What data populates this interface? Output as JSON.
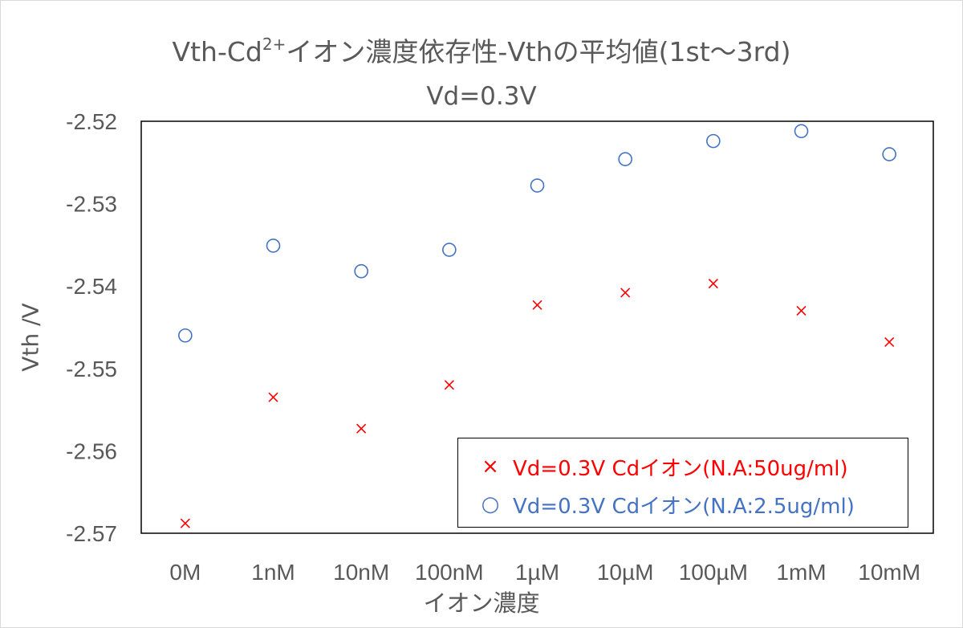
{
  "chart_data": {
    "type": "scatter",
    "title_main": "Vth-Cd",
    "title_sup": "2+",
    "title_rest": "イオン濃度依存性-Vthの平均値(1st～3rd)",
    "subtitle": "Vd=0.3V",
    "xlabel": "イオン濃度",
    "ylabel": "Vth /V",
    "categories": [
      "0M",
      "1nM",
      "10nM",
      "100nM",
      "1µM",
      "10µM",
      "100µM",
      "1mM",
      "10mM"
    ],
    "ylim": [
      -2.57,
      -2.52
    ],
    "yticks": [
      -2.52,
      -2.53,
      -2.54,
      -2.55,
      -2.56,
      -2.57
    ],
    "ytick_labels": [
      "-2.52",
      "-2.53",
      "-2.54",
      "-2.55",
      "-2.56",
      "-2.57"
    ],
    "grid": false,
    "legend_position": "bottom-right",
    "series": [
      {
        "name": "Vd=0.3V Cdイオン(N.A:50ug/ml)",
        "marker": "×",
        "color": "#ff0000",
        "values": [
          -2.5688,
          -2.5535,
          -2.5573,
          -2.552,
          -2.5423,
          -2.5408,
          -2.5397,
          -2.543,
          -2.5468
        ]
      },
      {
        "name": "Vd=0.3V Cdイオン(N.A:2.5ug/ml)",
        "marker": "○",
        "color": "#4472c4",
        "values": [
          -2.546,
          -2.5351,
          -2.5382,
          -2.5356,
          -2.5278,
          -2.5246,
          -2.5224,
          -2.5212,
          -2.524
        ]
      }
    ]
  }
}
